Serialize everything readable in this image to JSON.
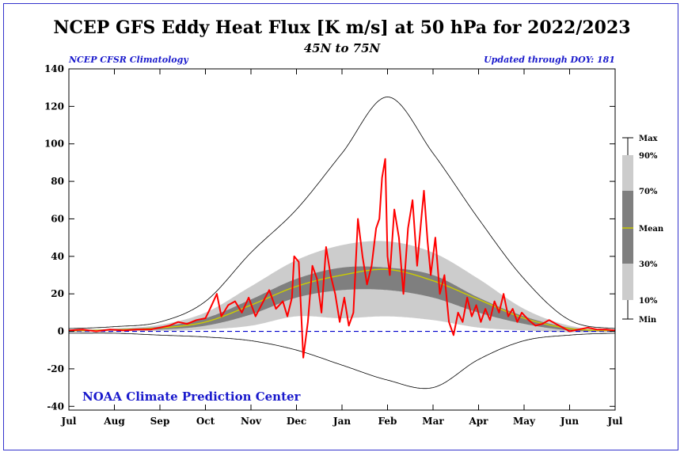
{
  "chart_data": {
    "type": "line",
    "title": "NCEP GFS Eddy Heat Flux [K m/s] at 50 hPa for 2022/2023",
    "subtitle": "45N to 75N",
    "left_note": "NCEP CFSR Climatology",
    "right_note": "Updated through DOY: 181",
    "credit": "NOAA Climate Prediction Center",
    "ylim": [
      -42,
      140
    ],
    "y_ticks": [
      -40,
      -20,
      0,
      20,
      40,
      60,
      80,
      100,
      120,
      140
    ],
    "x_ticks": [
      "Jul",
      "Aug",
      "Sep",
      "Oct",
      "Nov",
      "Dec",
      "Jan",
      "Feb",
      "Mar",
      "Apr",
      "May",
      "Jun",
      "Jul"
    ],
    "legend": {
      "items": [
        "Max",
        "90%",
        "70%",
        "Mean",
        "30%",
        "10%",
        "Min"
      ],
      "colors": {
        "band10_90": "#cccccc",
        "band30_70": "#7f7f7f",
        "mean": "#cccc00",
        "series": "#ff0000",
        "extremes": "#000000",
        "zero": "#0000cc"
      }
    },
    "climatology": {
      "months": [
        0,
        1,
        2,
        3,
        4,
        5,
        6,
        7,
        8,
        9,
        10,
        11,
        12
      ],
      "max": [
        1.5,
        2.5,
        5,
        16,
        42,
        65,
        95,
        125,
        95,
        60,
        28,
        6,
        1.5
      ],
      "p90": [
        0.8,
        1.5,
        3.5,
        10,
        24,
        38,
        46,
        48,
        42,
        28,
        12,
        3,
        0.8
      ],
      "p70": [
        0.5,
        1.2,
        2.5,
        7,
        17,
        28,
        34,
        34,
        30,
        18,
        8,
        2,
        0.5
      ],
      "mean": [
        0.3,
        0.8,
        1.8,
        5,
        14,
        24,
        30,
        33,
        27,
        17,
        7,
        1.5,
        0.3
      ],
      "p30": [
        0.0,
        0.5,
        1.0,
        3,
        9,
        18,
        22,
        22,
        18,
        10,
        4,
        0.5,
        0.0
      ],
      "p10": [
        -0.3,
        0.0,
        0.2,
        1,
        3,
        8,
        7,
        8,
        6,
        2,
        0.5,
        -0.5,
        -0.3
      ],
      "min": [
        -1,
        -1,
        -2,
        -3,
        -5,
        -10,
        -18,
        -26,
        -30,
        -15,
        -5,
        -2,
        -1
      ]
    },
    "series": [
      {
        "name": "2022/2023",
        "x": [
          0,
          0.3,
          0.6,
          0.9,
          1.2,
          1.5,
          1.8,
          2.0,
          2.2,
          2.4,
          2.6,
          2.8,
          3.0,
          3.1,
          3.25,
          3.35,
          3.5,
          3.65,
          3.8,
          3.95,
          4.1,
          4.25,
          4.4,
          4.55,
          4.7,
          4.8,
          4.9,
          4.95,
          5.05,
          5.15,
          5.25,
          5.35,
          5.45,
          5.55,
          5.65,
          5.75,
          5.85,
          5.95,
          6.05,
          6.15,
          6.25,
          6.35,
          6.45,
          6.55,
          6.65,
          6.75,
          6.82,
          6.88,
          6.95,
          7.0,
          7.05,
          7.15,
          7.25,
          7.35,
          7.45,
          7.55,
          7.65,
          7.75,
          7.8,
          7.88,
          7.95,
          8.05,
          8.15,
          8.25,
          8.35,
          8.45,
          8.55,
          8.65,
          8.75,
          8.85,
          8.95,
          9.05,
          9.15,
          9.25,
          9.35,
          9.45,
          9.55,
          9.65,
          9.75,
          9.85,
          9.95,
          10.1,
          10.25,
          10.4,
          10.55,
          10.7,
          10.85,
          11.0,
          11.2,
          11.4,
          11.6,
          11.8,
          12.0
        ],
        "y": [
          0.5,
          1,
          0,
          1,
          0.5,
          1,
          1,
          2,
          3,
          5,
          4,
          6,
          7,
          12,
          20,
          8,
          14,
          16,
          10,
          18,
          8,
          15,
          22,
          12,
          16,
          8,
          18,
          40,
          37,
          -14,
          5,
          35,
          28,
          10,
          45,
          30,
          20,
          5,
          18,
          3,
          10,
          60,
          40,
          25,
          35,
          55,
          60,
          82,
          92,
          40,
          30,
          65,
          50,
          20,
          55,
          70,
          35,
          62,
          75,
          48,
          30,
          50,
          20,
          30,
          5,
          -2,
          10,
          5,
          18,
          8,
          14,
          5,
          12,
          6,
          16,
          10,
          20,
          8,
          12,
          5,
          10,
          6,
          3,
          4,
          6,
          4,
          2,
          0,
          1,
          2,
          1,
          1,
          0.5
        ]
      }
    ]
  }
}
